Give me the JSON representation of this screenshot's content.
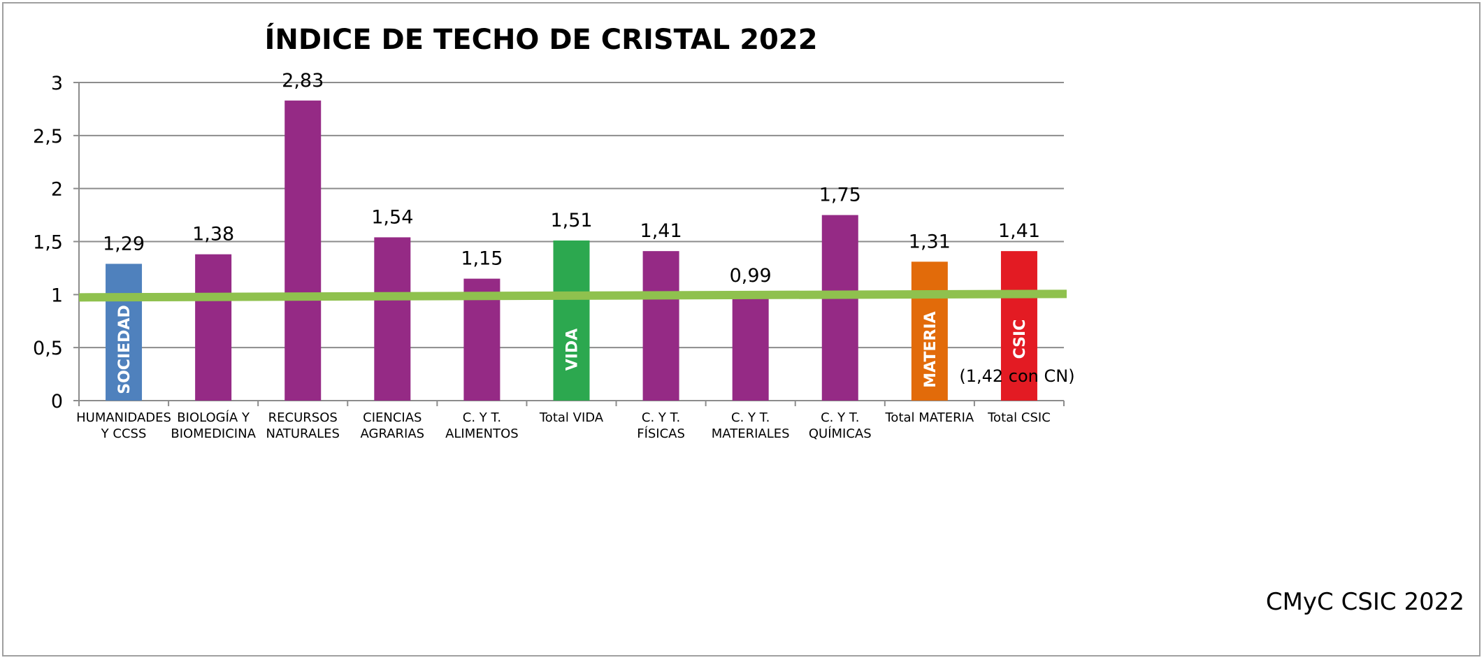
{
  "chart_data": {
    "type": "bar",
    "title": "ÍNDICE DE TECHO DE CRISTAL 2022",
    "categories": [
      [
        "HUMANIDADES",
        "Y CCSS"
      ],
      [
        "BIOLOGÍA Y",
        "BIOMEDICINA"
      ],
      [
        "RECURSOS",
        "NATURALES"
      ],
      [
        "CIENCIAS",
        "AGRARIAS"
      ],
      [
        "C. Y T.",
        "ALIMENTOS"
      ],
      [
        "Total VIDA"
      ],
      [
        "C. Y T.",
        "FÍSICAS"
      ],
      [
        "C. Y T.",
        "MATERIALES"
      ],
      [
        "C. Y T.",
        "QUÍMICAS"
      ],
      [
        "Total MATERIA"
      ],
      [
        "Total CSIC"
      ]
    ],
    "values": [
      1.29,
      1.38,
      2.83,
      1.54,
      1.15,
      1.51,
      1.41,
      0.99,
      1.75,
      1.31,
      1.41
    ],
    "data_labels": [
      "1,29",
      "1,38",
      "2,83",
      "1,54",
      "1,15",
      "1,51",
      "1,41",
      "0,99",
      "1,75",
      "1,31",
      "1,41"
    ],
    "colors": [
      "#4f81bd",
      "#952a85",
      "#952a85",
      "#952a85",
      "#952a85",
      "#2ca84f",
      "#952a85",
      "#952a85",
      "#952a85",
      "#e26b0a",
      "#e31b23"
    ],
    "bar_inner_labels": {
      "0": "SOCIEDAD",
      "5": "VIDA",
      "9": "MATERIA",
      "10": "CSIC"
    },
    "annotation": "(1,42 con CN)",
    "ylim": [
      0,
      3
    ],
    "yticks": [
      0,
      0.5,
      1,
      1.5,
      2,
      2.5,
      3
    ],
    "ytick_labels": [
      "0",
      "0,5",
      "1",
      "1,5",
      "2",
      "2,5",
      "3"
    ],
    "grid": true,
    "reference_line": {
      "value": 1,
      "color": "#8fc14e"
    },
    "xlabel": "",
    "ylabel": ""
  },
  "footer": "CMyC CSIC 2022"
}
